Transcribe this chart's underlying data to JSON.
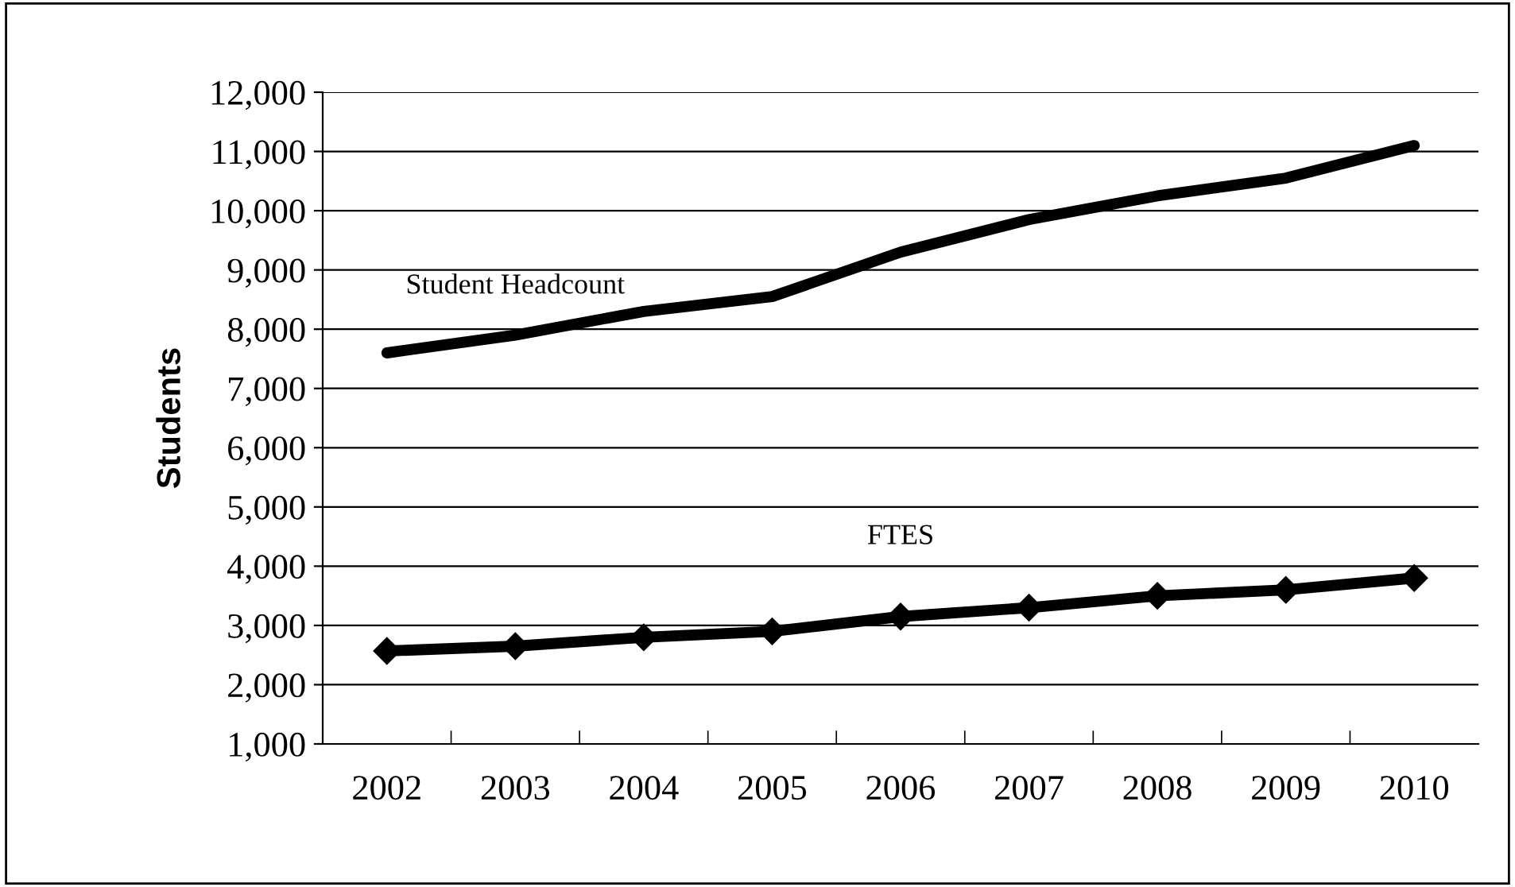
{
  "chart_data": {
    "type": "line",
    "ylabel": "Students",
    "categories": [
      "2002",
      "2003",
      "2004",
      "2005",
      "2006",
      "2007",
      "2008",
      "2009",
      "2010"
    ],
    "series": [
      {
        "name": "Student Headcount",
        "color": "#000000",
        "marker": "none",
        "values": [
          7600,
          7900,
          8300,
          8550,
          9300,
          9850,
          10250,
          10550,
          11100
        ]
      },
      {
        "name": "FTES",
        "color": "#000000",
        "marker": "diamond",
        "values": [
          2570,
          2650,
          2800,
          2900,
          3150,
          3300,
          3500,
          3600,
          3800
        ]
      }
    ],
    "ylim": [
      1000,
      12000
    ],
    "yticks": [
      {
        "value": 1000,
        "label": "1,000"
      },
      {
        "value": 2000,
        "label": "2,000"
      },
      {
        "value": 3000,
        "label": "3,000"
      },
      {
        "value": 4000,
        "label": "4,000"
      },
      {
        "value": 5000,
        "label": "5,000"
      },
      {
        "value": 6000,
        "label": "6,000"
      },
      {
        "value": 7000,
        "label": "7,000"
      },
      {
        "value": 8000,
        "label": "8,000"
      },
      {
        "value": 9000,
        "label": "9,000"
      },
      {
        "value": 10000,
        "label": "10,000"
      },
      {
        "value": 11000,
        "label": "11,000"
      },
      {
        "value": 12000,
        "label": "12,000"
      }
    ],
    "grid": "y",
    "legend": false
  }
}
